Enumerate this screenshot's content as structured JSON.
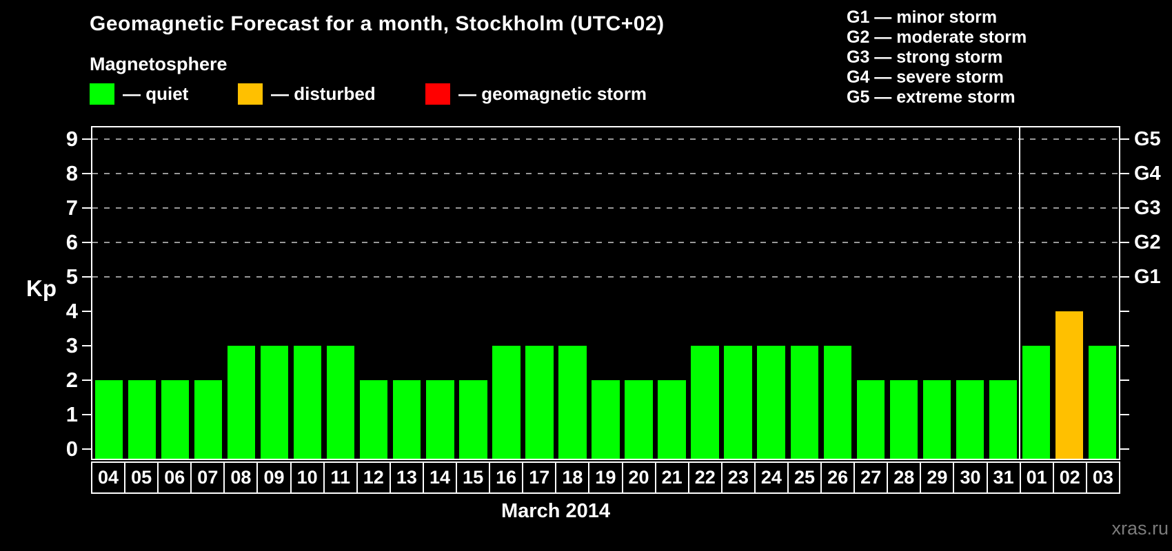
{
  "title": "Geomagnetic Forecast for a month, Stockholm (UTC+02)",
  "subtitle": "Magnetosphere",
  "legend": {
    "items": [
      {
        "key": "quiet",
        "label": "— quiet",
        "color": "#00ff00"
      },
      {
        "key": "disturbed",
        "label": "— disturbed",
        "color": "#ffc000"
      },
      {
        "key": "storm",
        "label": "— geomagnetic storm",
        "color": "#ff0000"
      }
    ]
  },
  "storm_scale_legend": [
    "G1 — minor storm",
    "G2 — moderate storm",
    "G3 — strong storm",
    "G4 — severe storm",
    "G5 — extreme storm"
  ],
  "watermark": "xras.ru",
  "chart_data": {
    "type": "bar",
    "title": "Geomagnetic Forecast for a month, Stockholm (UTC+02)",
    "xlabel": "March 2014",
    "ylabel": "Kp",
    "ylim": [
      0,
      9
    ],
    "grid": "dashed horizontal at Kp 5-9 only",
    "legend_position": "top",
    "categories": [
      "04",
      "05",
      "06",
      "07",
      "08",
      "09",
      "10",
      "11",
      "12",
      "13",
      "14",
      "15",
      "16",
      "17",
      "18",
      "19",
      "20",
      "21",
      "22",
      "23",
      "24",
      "25",
      "26",
      "27",
      "28",
      "29",
      "30",
      "31",
      "01",
      "02",
      "03"
    ],
    "values": [
      2,
      2,
      2,
      2,
      3,
      3,
      3,
      3,
      2,
      2,
      2,
      2,
      3,
      3,
      3,
      2,
      2,
      2,
      3,
      3,
      3,
      3,
      3,
      2,
      2,
      2,
      2,
      2,
      3,
      4,
      3
    ],
    "statuses": [
      "quiet",
      "quiet",
      "quiet",
      "quiet",
      "quiet",
      "quiet",
      "quiet",
      "quiet",
      "quiet",
      "quiet",
      "quiet",
      "quiet",
      "quiet",
      "quiet",
      "quiet",
      "quiet",
      "quiet",
      "quiet",
      "quiet",
      "quiet",
      "quiet",
      "quiet",
      "quiet",
      "quiet",
      "quiet",
      "quiet",
      "quiet",
      "quiet",
      "quiet",
      "disturbed",
      "quiet"
    ],
    "status_colors": {
      "quiet": "#00ff00",
      "disturbed": "#ffc000",
      "storm": "#ff0000"
    },
    "grid_levels": [
      5,
      6,
      7,
      8,
      9
    ],
    "right_axis": [
      {
        "kp": 5,
        "label": "G1"
      },
      {
        "kp": 6,
        "label": "G2"
      },
      {
        "kp": 7,
        "label": "G3"
      },
      {
        "kp": 8,
        "label": "G4"
      },
      {
        "kp": 9,
        "label": "G5"
      }
    ],
    "month_separator_after_index": 27
  }
}
